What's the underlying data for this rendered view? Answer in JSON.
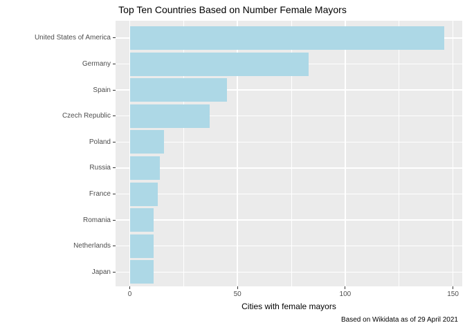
{
  "chart_data": {
    "type": "bar",
    "orientation": "horizontal",
    "title": "Top Ten Countries Based on Number Female Mayors",
    "caption": "Based on Wikidata as of 29 April 2021",
    "xlabel": "Cities with female mayors",
    "ylabel": "",
    "categories": [
      "United States of America",
      "Germany",
      "Spain",
      "Czech Republic",
      "Poland",
      "Russia",
      "France",
      "Romania",
      "Netherlands",
      "Japan"
    ],
    "values": [
      146,
      83,
      45,
      37,
      16,
      14,
      13,
      11,
      11,
      11
    ],
    "xlim": [
      0,
      155
    ],
    "x_major_ticks": [
      0,
      50,
      100,
      150
    ],
    "x_minor_ticks": [
      25,
      75,
      125
    ],
    "grid": "white major and minor gridlines on grey panel",
    "legend": "none",
    "colors": {
      "bar": "#ADD8E6",
      "panel_background": "#EBEBEB",
      "gridline": "#FFFFFF",
      "axis_text": "#4D4D4D",
      "tick_mark": "#333333",
      "title_text": "#000000"
    }
  }
}
